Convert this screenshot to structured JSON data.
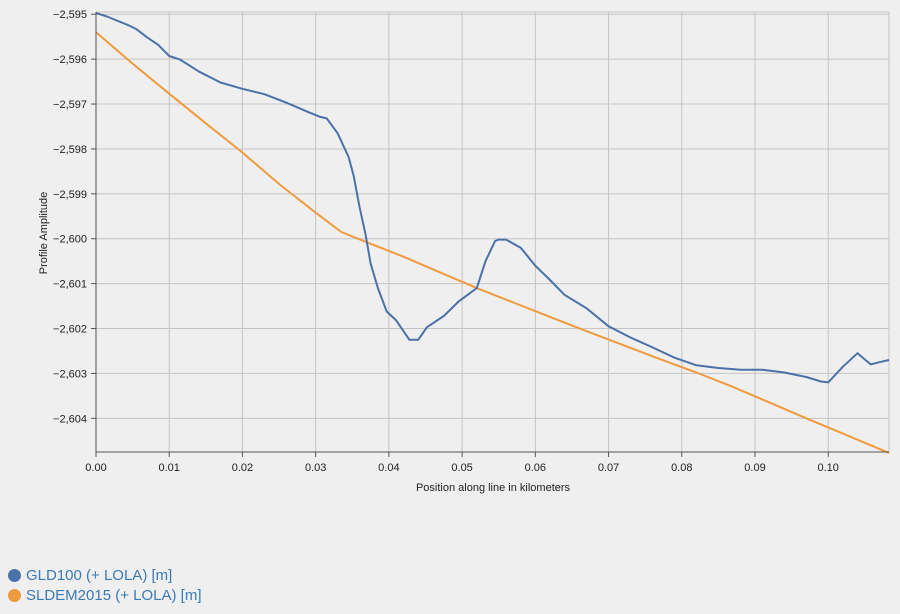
{
  "chart_data": {
    "type": "line",
    "xlabel": "Position along line in kilometers",
    "ylabel": "Profile Amplitude",
    "xlim": [
      0.0,
      0.1083
    ],
    "ylim": [
      -2604.75,
      -2594.95
    ],
    "x_ticks": [
      0.0,
      0.01,
      0.02,
      0.03,
      0.04,
      0.05,
      0.06,
      0.07,
      0.08,
      0.09,
      0.1
    ],
    "x_tick_labels": [
      "0.00",
      "0.01",
      "0.02",
      "0.03",
      "0.04",
      "0.05",
      "0.06",
      "0.07",
      "0.08",
      "0.09",
      "0.10"
    ],
    "y_ticks": [
      -2595,
      -2596,
      -2597,
      -2598,
      -2599,
      -2600,
      -2601,
      -2602,
      -2603,
      -2604
    ],
    "y_tick_labels": [
      "−2,595",
      "−2,596",
      "−2,597",
      "−2,598",
      "−2,599",
      "−2,600",
      "−2,601",
      "−2,602",
      "−2,603",
      "−2,604"
    ],
    "grid": true,
    "legend_position": "bottom-left",
    "series": [
      {
        "name": "GLD100 (+ LOLA) [m]",
        "color": "#4a72a8",
        "x": [
          0.0,
          0.0015,
          0.003,
          0.0045,
          0.0055,
          0.007,
          0.0085,
          0.01,
          0.0115,
          0.014,
          0.017,
          0.02,
          0.023,
          0.026,
          0.029,
          0.0305,
          0.0315,
          0.033,
          0.0345,
          0.0352,
          0.036,
          0.0368,
          0.0375,
          0.0385,
          0.0397,
          0.041,
          0.0428,
          0.044,
          0.0452,
          0.0475,
          0.0495,
          0.052,
          0.0532,
          0.0545,
          0.055,
          0.056,
          0.058,
          0.06,
          0.062,
          0.064,
          0.067,
          0.07,
          0.073,
          0.076,
          0.079,
          0.082,
          0.085,
          0.088,
          0.091,
          0.094,
          0.097,
          0.099,
          0.1,
          0.102,
          0.104,
          0.1058,
          0.107,
          0.1083
        ],
        "y": [
          -2594.97,
          -2595.05,
          -2595.15,
          -2595.25,
          -2595.33,
          -2595.52,
          -2595.68,
          -2595.93,
          -2596.01,
          -2596.27,
          -2596.52,
          -2596.66,
          -2596.78,
          -2596.97,
          -2597.18,
          -2597.28,
          -2597.32,
          -2597.65,
          -2598.18,
          -2598.6,
          -2599.3,
          -2599.9,
          -2600.55,
          -2601.1,
          -2601.62,
          -2601.82,
          -2602.25,
          -2602.25,
          -2601.97,
          -2601.72,
          -2601.4,
          -2601.1,
          -2600.5,
          -2600.05,
          -2600.02,
          -2600.02,
          -2600.2,
          -2600.6,
          -2600.92,
          -2601.25,
          -2601.55,
          -2601.95,
          -2602.2,
          -2602.42,
          -2602.65,
          -2602.82,
          -2602.88,
          -2602.92,
          -2602.92,
          -2602.98,
          -2603.08,
          -2603.18,
          -2603.2,
          -2602.85,
          -2602.55,
          -2602.8,
          -2602.75,
          -2602.7
        ]
      },
      {
        "name": "SLDEM2015 (+ LOLA) [m]",
        "color": "#f09a3e",
        "x": [
          0.0,
          0.005,
          0.01,
          0.015,
          0.02,
          0.025,
          0.03,
          0.0335,
          0.037,
          0.042,
          0.047,
          0.052,
          0.057,
          0.062,
          0.067,
          0.072,
          0.077,
          0.082,
          0.087,
          0.092,
          0.097,
          0.102,
          0.1083
        ],
        "y": [
          -2595.4,
          -2596.1,
          -2596.77,
          -2597.43,
          -2598.08,
          -2598.78,
          -2599.42,
          -2599.85,
          -2600.08,
          -2600.4,
          -2600.75,
          -2601.1,
          -2601.42,
          -2601.74,
          -2602.06,
          -2602.37,
          -2602.68,
          -2602.98,
          -2603.3,
          -2603.65,
          -2604.0,
          -2604.34,
          -2604.77
        ]
      }
    ]
  }
}
